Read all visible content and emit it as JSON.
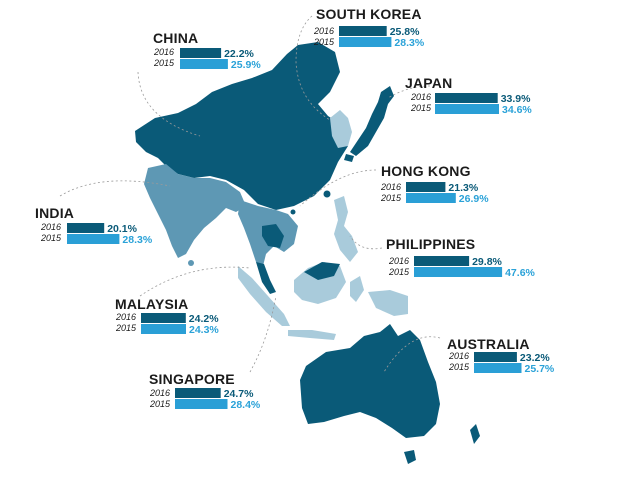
{
  "chart_data": {
    "type": "bar",
    "series": [
      {
        "name": "2016",
        "color": "#0a5a78"
      },
      {
        "name": "2015",
        "color": "#2a9fd6"
      }
    ],
    "value_format": "percent",
    "countries": [
      {
        "name": "CHINA",
        "values": {
          "2016": "22.2%",
          "2015": "25.9%"
        },
        "v2016": 22.2,
        "v2015": 25.9
      },
      {
        "name": "SOUTH KOREA",
        "values": {
          "2016": "25.8%",
          "2015": "28.3%"
        },
        "v2016": 25.8,
        "v2015": 28.3
      },
      {
        "name": "JAPAN",
        "values": {
          "2016": "33.9%",
          "2015": "34.6%"
        },
        "v2016": 33.9,
        "v2015": 34.6
      },
      {
        "name": "HONG KONG",
        "values": {
          "2016": "21.3%",
          "2015": "26.9%"
        },
        "v2016": 21.3,
        "v2015": 26.9
      },
      {
        "name": "INDIA",
        "values": {
          "2016": "20.1%",
          "2015": "28.3%"
        },
        "v2016": 20.1,
        "v2015": 28.3
      },
      {
        "name": "PHILIPPINES",
        "values": {
          "2016": "29.8%",
          "2015": "47.6%"
        },
        "v2016": 29.8,
        "v2015": 47.6
      },
      {
        "name": "MALAYSIA",
        "values": {
          "2016": "24.2%",
          "2015": "24.3%"
        },
        "v2016": 24.2,
        "v2015": 24.3
      },
      {
        "name": "AUSTRALIA",
        "values": {
          "2016": "23.2%",
          "2015": "25.7%"
        },
        "v2016": 23.2,
        "v2015": 25.7
      },
      {
        "name": "SINGAPORE",
        "values": {
          "2016": "24.7%",
          "2015": "28.4%"
        },
        "v2016": 24.7,
        "v2015": 28.4
      }
    ]
  },
  "map_colors": {
    "dark": "#0a5a78",
    "medium": "#5e98b4",
    "light": "#a9cbdb"
  }
}
